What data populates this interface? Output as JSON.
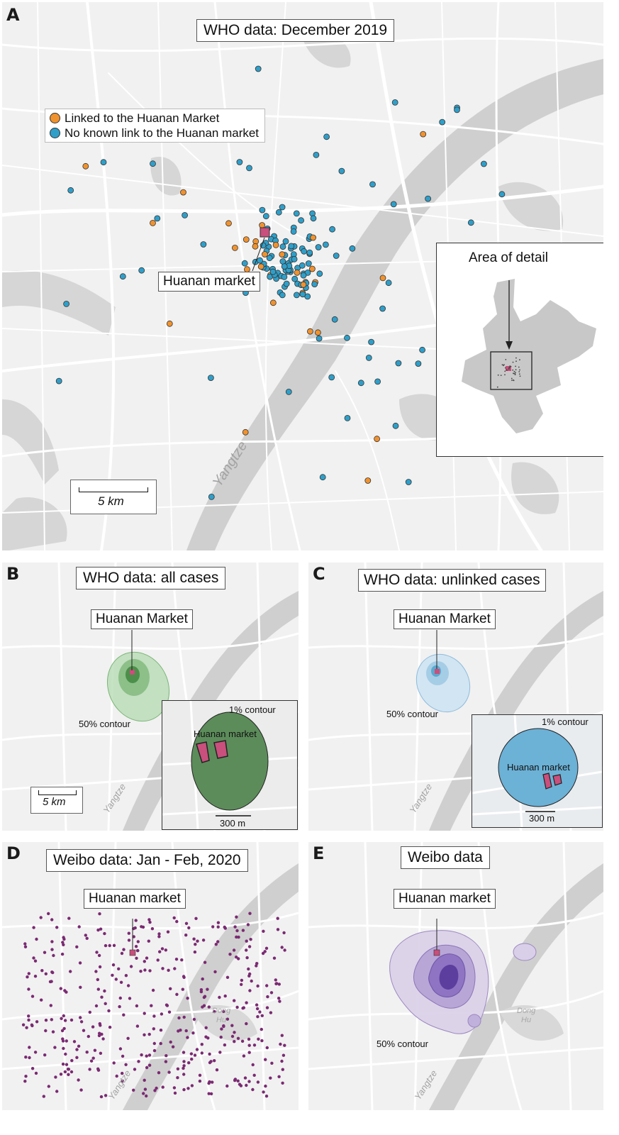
{
  "panels": {
    "a": {
      "label": "A",
      "title": "WHO data: December 2019",
      "market_label": "Huanan market",
      "scale": "5 km",
      "river": "Yangtze"
    },
    "b": {
      "label": "B",
      "title": "WHO data: all cases",
      "market_label": "Huanan Market",
      "contour_50": "50% contour",
      "contour_1": "1% contour",
      "inset_market": "Huanan market",
      "inset_scale": "300 m",
      "scale": "5 km",
      "river": "Yangtze"
    },
    "c": {
      "label": "C",
      "title": "WHO data: unlinked cases",
      "market_label": "Huanan Market",
      "contour_50": "50% contour",
      "contour_1": "1% contour",
      "inset_market": "Huanan market",
      "inset_scale": "300 m",
      "river": "Yangtze"
    },
    "d": {
      "label": "D",
      "title": "Weibo data: Jan - Feb, 2020",
      "market_label": "Huanan market",
      "lake": [
        "Dong",
        "Hu"
      ],
      "river": "Yangtze"
    },
    "e": {
      "label": "E",
      "title": "Weibo data",
      "market_label": "Huanan market",
      "contour_50": "50% contour",
      "lake": [
        "Dong",
        "Hu"
      ],
      "river": "Yangtze"
    }
  },
  "legend": {
    "linked": {
      "label": "Linked to the Huanan Market",
      "color": "#f0922e"
    },
    "unlinked": {
      "label": "No known link to the Huanan market",
      "color": "#2f9fc9"
    }
  },
  "inset_a": {
    "title": "Area of detail"
  },
  "colors": {
    "market": "#c94f7c",
    "who_all_contour": "#5c8c5a",
    "who_unlinked_contour": "#5da9cf",
    "weibo_point": "#7a2a72",
    "weibo_contour": "#5b3e9e",
    "river": "#d3d3d3",
    "road": "#ffffff",
    "land": "#f1f1f1"
  }
}
